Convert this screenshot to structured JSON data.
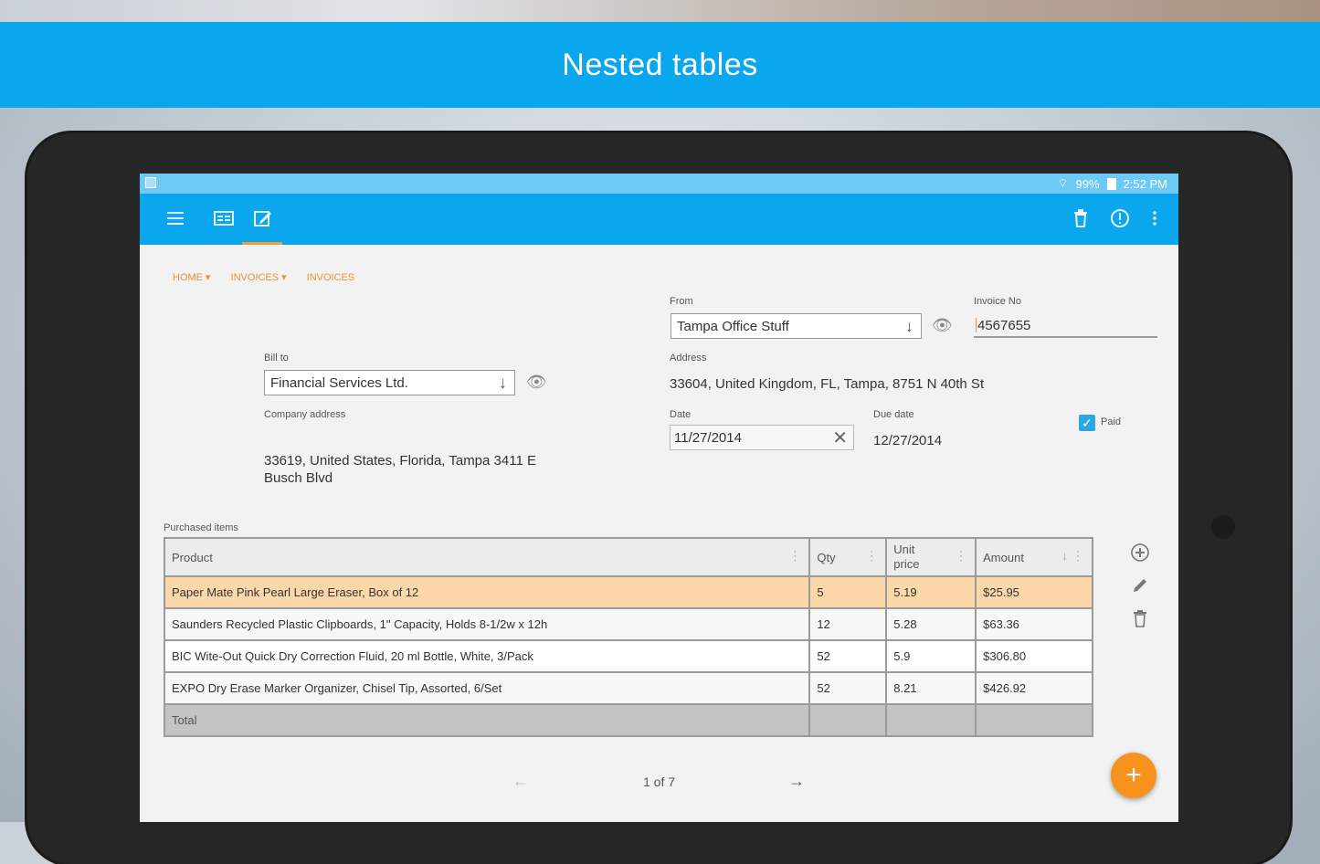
{
  "banner": {
    "title": "Nested tables"
  },
  "statusbar": {
    "net": "99%",
    "time": "2:52 PM"
  },
  "appbar": {
    "icons": [
      "menu-icon",
      "list-view-icon",
      "edit-icon",
      "delete-icon",
      "info-icon",
      "more-icon"
    ],
    "accent": "#0aa6ee"
  },
  "breadcrumb": {
    "home": "HOME",
    "invoices_parent": "INVOICES",
    "invoices_current": "INVOICES"
  },
  "form": {
    "from_label": "From",
    "from_value": "Tampa Office Stuff",
    "invoice_no_label": "Invoice No",
    "invoice_no_value": "4567655",
    "address_label": "Address",
    "address_value": "33604, United Kingdom, FL, Tampa, 8751 N 40th St",
    "bill_to_label": "Bill to",
    "bill_to_value": "Financial Services Ltd.",
    "company_address_label": "Company address",
    "company_address_line1": "33619, United States, Florida, Tampa 3411 E",
    "company_address_line2": "Busch Blvd",
    "date_label": "Date",
    "date_value": "11/27/2014",
    "due_date_label": "Due date",
    "due_date_value": "12/27/2014",
    "paid_label": "Paid",
    "paid_checked": true
  },
  "items": {
    "section_label": "Purchased items",
    "headers": {
      "product": "Product",
      "qty": "Qty",
      "unit_price_1": "Unit",
      "unit_price_2": "price",
      "amount": "Amount"
    },
    "rows": [
      {
        "product": "Paper Mate Pink Pearl Large Eraser, Box of 12",
        "qty": "5",
        "unit_price": "5.19",
        "amount": "$25.95"
      },
      {
        "product": "Saunders Recycled Plastic Clipboards, 1\" Capacity, Holds 8-1/2w x 12h",
        "qty": "12",
        "unit_price": "5.28",
        "amount": "$63.36"
      },
      {
        "product": "BIC Wite-Out Quick Dry Correction Fluid, 20 ml Bottle, White, 3/Pack",
        "qty": "52",
        "unit_price": "5.9",
        "amount": "$306.80"
      },
      {
        "product": "EXPO Dry Erase Marker Organizer, Chisel Tip, Assorted, 6/Set",
        "qty": "52",
        "unit_price": "8.21",
        "amount": "$426.92"
      }
    ],
    "total_label": "Total"
  },
  "pager": {
    "prev": "←",
    "text": "1 of 7",
    "next": "→"
  },
  "fab": {
    "label": "+",
    "color": "#f7921e"
  }
}
